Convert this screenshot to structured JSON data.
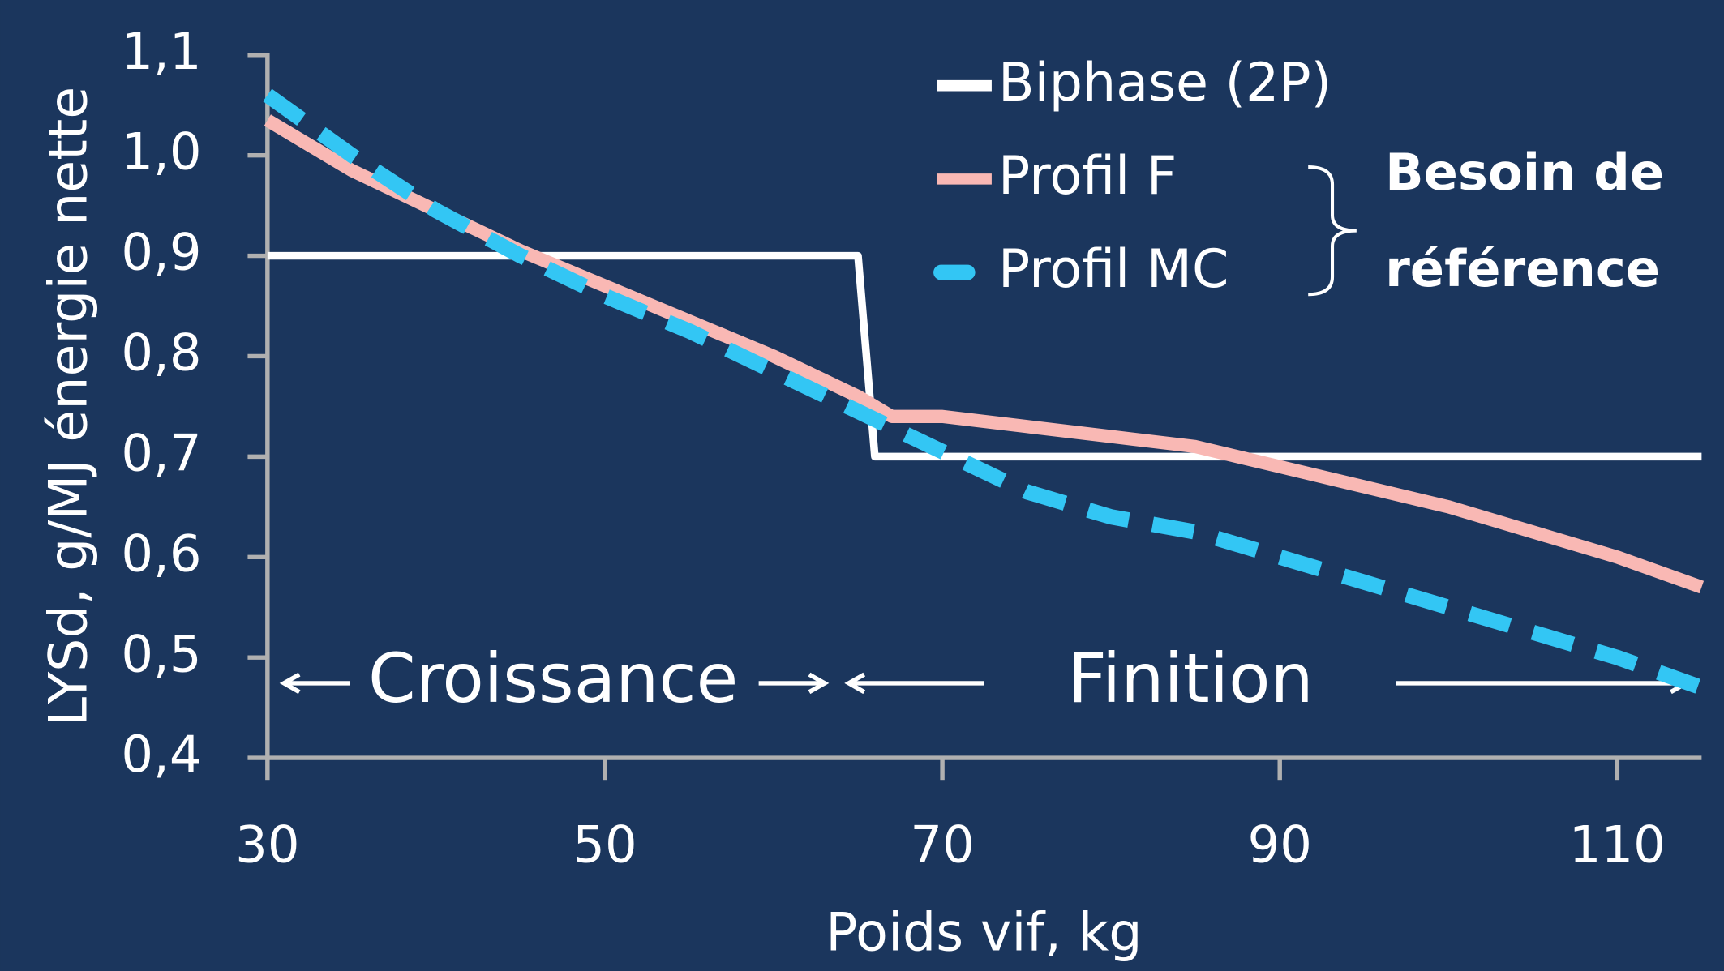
{
  "chart_data": {
    "type": "line",
    "y_label": "LYSd, g/MJ énergie nette",
    "x_label": "Poids vif, kg",
    "xlim": [
      30,
      115
    ],
    "xticks": [
      30,
      50,
      70,
      90,
      110
    ],
    "ylim": [
      0.4,
      1.1
    ],
    "yticks": [
      {
        "value": 0.4,
        "label": "0,4"
      },
      {
        "value": 0.5,
        "label": "0,5"
      },
      {
        "value": 0.6,
        "label": "0,6"
      },
      {
        "value": 0.7,
        "label": "0,7"
      },
      {
        "value": 0.8,
        "label": "0,8"
      },
      {
        "value": 0.9,
        "label": "0,9"
      },
      {
        "value": 1.0,
        "label": "1,0"
      },
      {
        "value": 1.1,
        "label": "1,1"
      }
    ],
    "series": [
      {
        "name": "Biphase (2P)",
        "color": "#ffffff",
        "x": [
          30,
          65,
          66,
          115
        ],
        "values": [
          0.9,
          0.9,
          0.7,
          0.7
        ]
      },
      {
        "name": "Profil F",
        "color": "#f9b8b4",
        "x": [
          30,
          35,
          40,
          45,
          50,
          55,
          60,
          65,
          67,
          70,
          75,
          80,
          85,
          90,
          95,
          100,
          105,
          110,
          115
        ],
        "values": [
          1.035,
          0.985,
          0.945,
          0.905,
          0.87,
          0.835,
          0.8,
          0.76,
          0.74,
          0.74,
          0.73,
          0.72,
          0.71,
          0.69,
          0.67,
          0.65,
          0.625,
          0.6,
          0.57
        ]
      },
      {
        "name": "Profil MC",
        "color": "#33c6f4",
        "dashed": true,
        "x": [
          30,
          35,
          40,
          45,
          50,
          55,
          60,
          65,
          70,
          75,
          80,
          85,
          90,
          95,
          100,
          105,
          110,
          115
        ],
        "values": [
          1.06,
          1.0,
          0.945,
          0.9,
          0.86,
          0.825,
          0.785,
          0.745,
          0.705,
          0.665,
          0.64,
          0.625,
          0.6,
          0.575,
          0.55,
          0.525,
          0.5,
          0.47
        ]
      }
    ],
    "annotations": [
      "Croissance",
      "Finition",
      "Besoin de",
      "référence"
    ]
  }
}
